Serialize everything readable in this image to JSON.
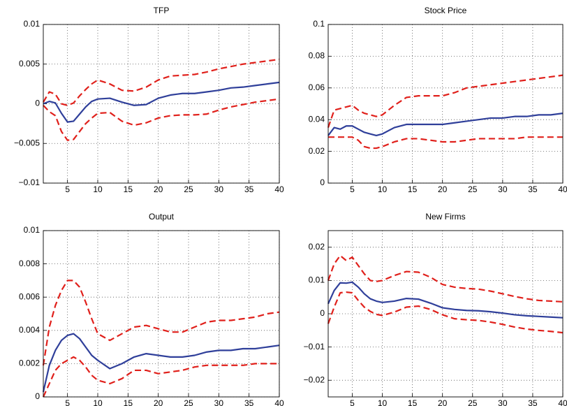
{
  "chart_data": [
    {
      "type": "line",
      "title": "TFP",
      "x": [
        1,
        2,
        3,
        4,
        5,
        6,
        7,
        8,
        9,
        10,
        12,
        14,
        16,
        18,
        20,
        22,
        24,
        26,
        28,
        30,
        32,
        34,
        36,
        38,
        40
      ],
      "series": [
        {
          "color": "#2f3f9a",
          "line_style": "solid",
          "values": [
            0,
            0.0003,
            0.0001,
            -0.0012,
            -0.0023,
            -0.0022,
            -0.0013,
            -0.0004,
            0.0003,
            0.0006,
            0.0007,
            0.0002,
            -0.0002,
            -0.0001,
            0.0007,
            0.0011,
            0.0013,
            0.0013,
            0.0015,
            0.0017,
            0.002,
            0.0021,
            0.0023,
            0.0025,
            0.0027
          ]
        },
        {
          "color": "#e0201b",
          "line_style": "dashed",
          "values": [
            0.0002,
            0.0015,
            0.0012,
            0,
            -0.0002,
            0.0001,
            0.001,
            0.0018,
            0.0025,
            0.003,
            0.0025,
            0.0017,
            0.0016,
            0.0021,
            0.003,
            0.0035,
            0.0036,
            0.0037,
            0.004,
            0.0044,
            0.0047,
            0.005,
            0.0052,
            0.0054,
            0.0056
          ]
        },
        {
          "color": "#e0201b",
          "line_style": "dashed",
          "values": [
            -0.0002,
            -0.001,
            -0.0015,
            -0.0035,
            -0.0046,
            -0.0045,
            -0.0035,
            -0.0025,
            -0.0018,
            -0.0012,
            -0.0011,
            -0.0022,
            -0.0027,
            -0.0024,
            -0.0018,
            -0.0015,
            -0.0014,
            -0.0014,
            -0.0013,
            -0.0008,
            -0.0004,
            -0.0001,
            0.0002,
            0.0004,
            0.0006
          ]
        }
      ],
      "xlim": [
        1,
        40
      ],
      "xticks": [
        5,
        10,
        15,
        20,
        25,
        30,
        35,
        40
      ],
      "ylim": [
        -0.01,
        0.01
      ],
      "yticks": [
        {
          "value": -0.01,
          "label": "−0.01"
        },
        {
          "value": -0.005,
          "label": "−0.005"
        },
        0,
        0.005,
        0.01
      ],
      "grid": true
    },
    {
      "type": "line",
      "title": "Stock Price",
      "x": [
        1,
        2,
        3,
        4,
        5,
        6,
        7,
        8,
        9,
        10,
        12,
        14,
        16,
        18,
        20,
        22,
        24,
        26,
        28,
        30,
        32,
        34,
        36,
        38,
        40
      ],
      "series": [
        {
          "color": "#2f3f9a",
          "line_style": "solid",
          "values": [
            0.03,
            0.035,
            0.034,
            0.036,
            0.036,
            0.034,
            0.032,
            0.031,
            0.03,
            0.031,
            0.035,
            0.037,
            0.037,
            0.037,
            0.037,
            0.038,
            0.039,
            0.04,
            0.041,
            0.041,
            0.042,
            0.042,
            0.043,
            0.043,
            0.044
          ]
        },
        {
          "color": "#e0201b",
          "line_style": "dashed",
          "values": [
            0.035,
            0.046,
            0.047,
            0.048,
            0.049,
            0.046,
            0.044,
            0.043,
            0.042,
            0.043,
            0.049,
            0.054,
            0.055,
            0.055,
            0.055,
            0.057,
            0.06,
            0.061,
            0.062,
            0.063,
            0.064,
            0.065,
            0.066,
            0.067,
            0.068
          ]
        },
        {
          "color": "#e0201b",
          "line_style": "dashed",
          "values": [
            0.029,
            0.029,
            0.029,
            0.029,
            0.029,
            0.027,
            0.023,
            0.022,
            0.022,
            0.023,
            0.026,
            0.028,
            0.028,
            0.027,
            0.026,
            0.026,
            0.027,
            0.028,
            0.028,
            0.028,
            0.028,
            0.029,
            0.029,
            0.029,
            0.029
          ]
        }
      ],
      "xlim": [
        1,
        40
      ],
      "xticks": [
        5,
        10,
        15,
        20,
        25,
        30,
        35,
        40
      ],
      "ylim": [
        0,
        0.1
      ],
      "yticks": [
        0,
        0.02,
        0.04,
        0.06,
        0.08,
        0.1
      ],
      "grid": true
    },
    {
      "type": "line",
      "title": "Output",
      "x": [
        1,
        2,
        3,
        4,
        5,
        6,
        7,
        8,
        9,
        10,
        12,
        14,
        16,
        18,
        20,
        22,
        24,
        26,
        28,
        30,
        32,
        34,
        36,
        38,
        40
      ],
      "series": [
        {
          "color": "#2f3f9a",
          "line_style": "solid",
          "values": [
            0.0003,
            0.0019,
            0.0028,
            0.0034,
            0.0037,
            0.0038,
            0.0035,
            0.003,
            0.0025,
            0.0022,
            0.0017,
            0.002,
            0.0024,
            0.0026,
            0.0025,
            0.0024,
            0.0024,
            0.0025,
            0.0027,
            0.0028,
            0.0028,
            0.0029,
            0.0029,
            0.003,
            0.0031
          ]
        },
        {
          "color": "#e0201b",
          "line_style": "dashed",
          "values": [
            0.0019,
            0.0042,
            0.0055,
            0.0064,
            0.007,
            0.007,
            0.0066,
            0.0057,
            0.0047,
            0.0038,
            0.0034,
            0.0038,
            0.0042,
            0.0043,
            0.0041,
            0.0039,
            0.0039,
            0.0042,
            0.0045,
            0.0046,
            0.0046,
            0.0047,
            0.0048,
            0.005,
            0.0051
          ]
        },
        {
          "color": "#e0201b",
          "line_style": "dashed",
          "values": [
            0,
            0.0008,
            0.0016,
            0.002,
            0.0022,
            0.0024,
            0.0022,
            0.0018,
            0.0013,
            0.001,
            0.0008,
            0.0011,
            0.0016,
            0.0016,
            0.0014,
            0.0015,
            0.0016,
            0.0018,
            0.0019,
            0.0019,
            0.0019,
            0.0019,
            0.002,
            0.002,
            0.002
          ]
        }
      ],
      "xlim": [
        1,
        40
      ],
      "xticks": [
        5,
        10,
        15,
        20,
        25,
        30,
        35,
        40
      ],
      "ylim": [
        0,
        0.01
      ],
      "yticks": [
        0,
        0.002,
        0.004,
        0.006,
        0.008,
        0.01
      ],
      "grid": true
    },
    {
      "type": "line",
      "title": "New Firms",
      "x": [
        1,
        2,
        3,
        4,
        5,
        6,
        7,
        8,
        9,
        10,
        12,
        14,
        16,
        18,
        20,
        22,
        24,
        26,
        28,
        30,
        32,
        34,
        36,
        38,
        40
      ],
      "series": [
        {
          "color": "#2f3f9a",
          "line_style": "solid",
          "values": [
            0.003,
            0.007,
            0.0093,
            0.0092,
            0.0095,
            0.008,
            0.006,
            0.0045,
            0.0038,
            0.0034,
            0.0038,
            0.0046,
            0.0044,
            0.0032,
            0.0018,
            0.0013,
            0.001,
            0.0009,
            0.0006,
            0.0002,
            -0.0003,
            -0.0006,
            -0.0008,
            -0.001,
            -0.0012
          ]
        },
        {
          "color": "#e0201b",
          "line_style": "dashed",
          "values": [
            0.01,
            0.015,
            0.0175,
            0.016,
            0.017,
            0.0145,
            0.012,
            0.01,
            0.0097,
            0.01,
            0.0115,
            0.0127,
            0.0125,
            0.011,
            0.0088,
            0.008,
            0.0076,
            0.0074,
            0.0068,
            0.006,
            0.0052,
            0.0045,
            0.004,
            0.0038,
            0.0036
          ]
        },
        {
          "color": "#e0201b",
          "line_style": "dashed",
          "values": [
            -0.003,
            0.002,
            0.0063,
            0.0065,
            0.0063,
            0.004,
            0.002,
            0.0007,
            -0.0002,
            -0.0005,
            0.0005,
            0.002,
            0.0023,
            0.0013,
            -0.0003,
            -0.0015,
            -0.0018,
            -0.002,
            -0.0025,
            -0.0032,
            -0.004,
            -0.0046,
            -0.005,
            -0.0053,
            -0.0057
          ]
        }
      ],
      "xlim": [
        1,
        40
      ],
      "xticks": [
        5,
        10,
        15,
        20,
        25,
        30,
        35,
        40
      ],
      "ylim": [
        -0.025,
        0.025
      ],
      "yticks": [
        {
          "value": -0.02,
          "label": "−0.02"
        },
        {
          "value": -0.01,
          "label": "−0.01"
        },
        0,
        0.01,
        0.02
      ],
      "grid": true
    }
  ]
}
